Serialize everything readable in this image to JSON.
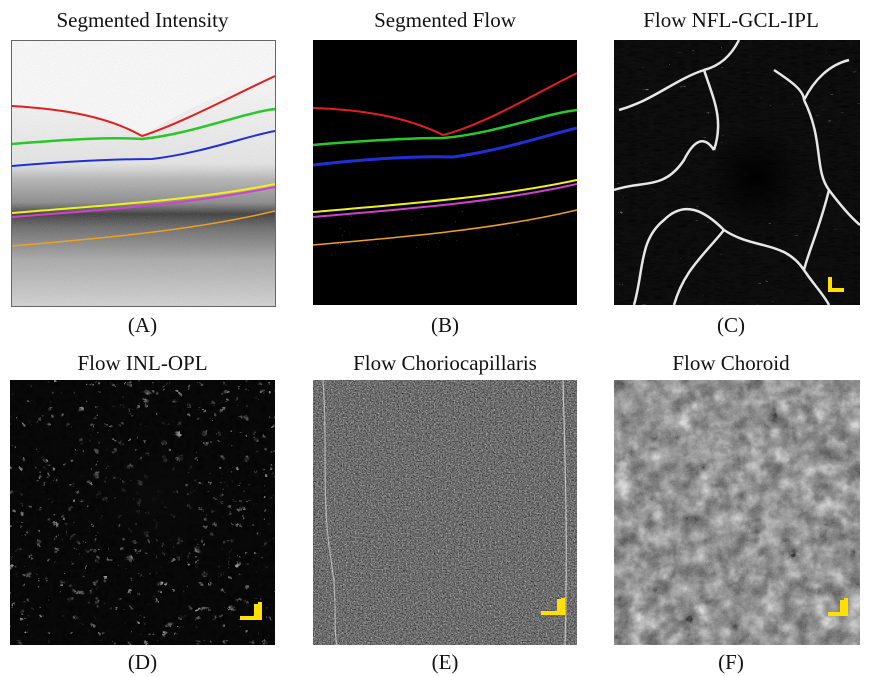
{
  "panels": [
    {
      "id": "A",
      "title": "Segmented Intensity",
      "caption": "(A)"
    },
    {
      "id": "B",
      "title": "Segmented Flow",
      "caption": "(B)"
    },
    {
      "id": "C",
      "title": "Flow NFL-GCL-IPL",
      "caption": "(C)"
    },
    {
      "id": "D",
      "title": "Flow INL-OPL",
      "caption": "(D)"
    },
    {
      "id": "E",
      "title": "Flow Choriocapillaris",
      "caption": "(E)"
    },
    {
      "id": "F",
      "title": "Flow Choroid",
      "caption": "(F)"
    }
  ],
  "colors": {
    "layer_red": "#e02020",
    "layer_green": "#28c828",
    "layer_blue": "#2030d8",
    "layer_yellow": "#f0f020",
    "layer_magenta": "#d040d0",
    "layer_orange": "#f0a020",
    "scale_bar": "#ffe000"
  }
}
